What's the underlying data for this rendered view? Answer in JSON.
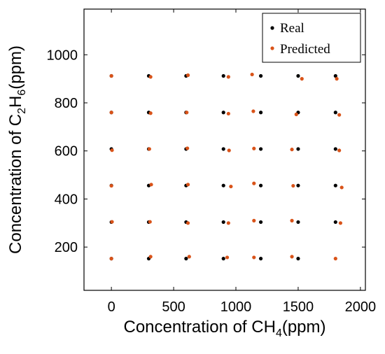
{
  "chart_data": {
    "type": "scatter",
    "xlabel": {
      "prefix": "Concentration of CH",
      "sub": "4",
      "suffix": "(ppm)"
    },
    "ylabel": {
      "prefix": "Concentration of C",
      "sub1": "2",
      "mid": "H",
      "sub2": "6",
      "suffix": "(ppm)"
    },
    "xlim": [
      -220,
      2040
    ],
    "ylim": [
      20,
      1190
    ],
    "xticks": [
      0,
      500,
      1000,
      1500,
      2000
    ],
    "yticks": [
      200,
      400,
      600,
      800,
      1000
    ],
    "grid": false,
    "legend_position": "top-right",
    "series": [
      {
        "name": "Real",
        "color": "#000000",
        "points": [
          [
            0,
            152
          ],
          [
            300,
            152
          ],
          [
            600,
            152
          ],
          [
            900,
            152
          ],
          [
            1200,
            152
          ],
          [
            1500,
            152
          ],
          [
            0,
            304
          ],
          [
            300,
            304
          ],
          [
            600,
            304
          ],
          [
            900,
            304
          ],
          [
            1200,
            304
          ],
          [
            1500,
            304
          ],
          [
            1800,
            304
          ],
          [
            0,
            456
          ],
          [
            300,
            456
          ],
          [
            600,
            456
          ],
          [
            900,
            456
          ],
          [
            1200,
            456
          ],
          [
            1500,
            456
          ],
          [
            1800,
            456
          ],
          [
            0,
            608
          ],
          [
            300,
            608
          ],
          [
            600,
            608
          ],
          [
            900,
            608
          ],
          [
            1200,
            608
          ],
          [
            1500,
            608
          ],
          [
            1800,
            608
          ],
          [
            0,
            760
          ],
          [
            300,
            760
          ],
          [
            600,
            760
          ],
          [
            900,
            760
          ],
          [
            1200,
            760
          ],
          [
            1500,
            760
          ],
          [
            1800,
            760
          ],
          [
            0,
            912
          ],
          [
            300,
            912
          ],
          [
            600,
            912
          ],
          [
            900,
            912
          ],
          [
            1200,
            912
          ],
          [
            1500,
            912
          ],
          [
            1800,
            912
          ]
        ]
      },
      {
        "name": "Predicted",
        "color": "#d95319",
        "points": [
          [
            0,
            152
          ],
          [
            315,
            160
          ],
          [
            625,
            160
          ],
          [
            930,
            157
          ],
          [
            1145,
            157
          ],
          [
            1450,
            160
          ],
          [
            1800,
            152
          ],
          [
            5,
            305
          ],
          [
            310,
            305
          ],
          [
            615,
            300
          ],
          [
            940,
            300
          ],
          [
            1145,
            310
          ],
          [
            1450,
            310
          ],
          [
            1840,
            300
          ],
          [
            0,
            455
          ],
          [
            320,
            460
          ],
          [
            615,
            460
          ],
          [
            960,
            452
          ],
          [
            1145,
            465
          ],
          [
            1460,
            455
          ],
          [
            1850,
            448
          ],
          [
            5,
            603
          ],
          [
            305,
            608
          ],
          [
            610,
            611
          ],
          [
            945,
            602
          ],
          [
            1145,
            610
          ],
          [
            1450,
            606
          ],
          [
            1830,
            602
          ],
          [
            0,
            760
          ],
          [
            315,
            757
          ],
          [
            605,
            760
          ],
          [
            940,
            755
          ],
          [
            1140,
            765
          ],
          [
            1485,
            752
          ],
          [
            1830,
            750
          ],
          [
            0,
            912
          ],
          [
            315,
            908
          ],
          [
            615,
            915
          ],
          [
            940,
            908
          ],
          [
            1130,
            918
          ],
          [
            1530,
            900
          ],
          [
            1810,
            900
          ]
        ]
      }
    ]
  }
}
